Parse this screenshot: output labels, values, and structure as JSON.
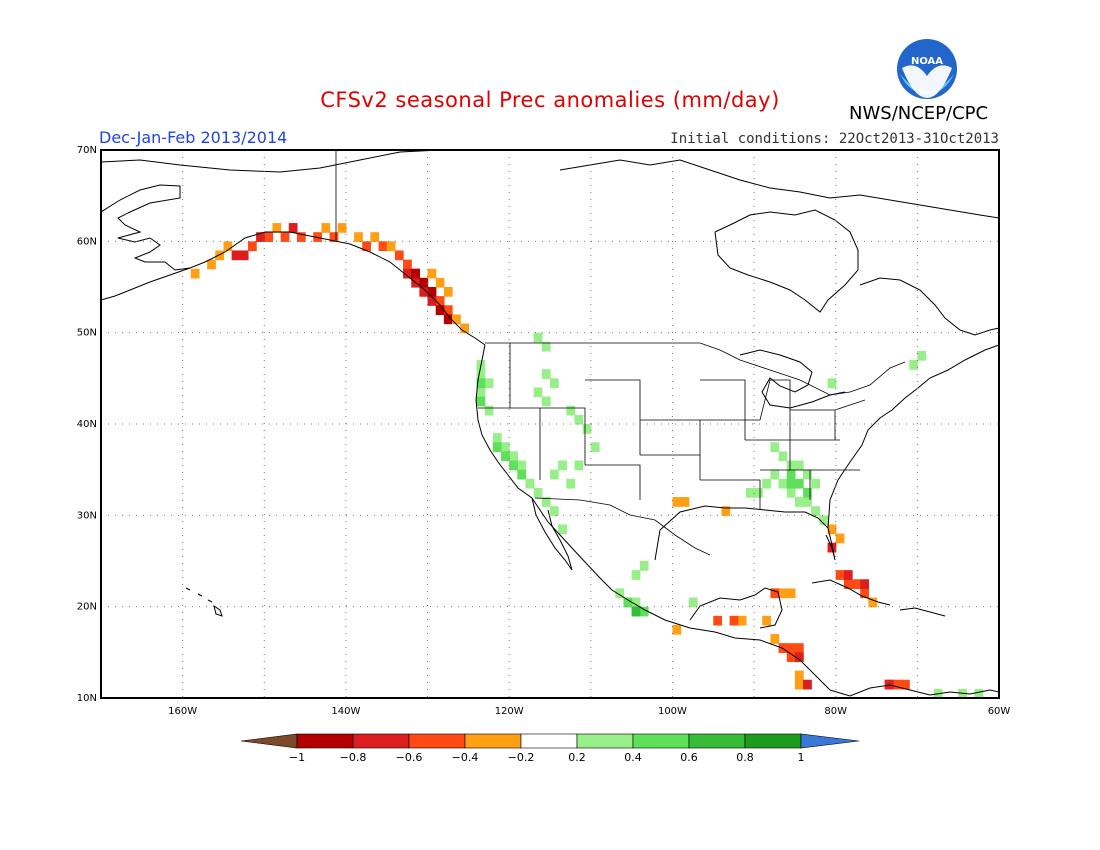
{
  "title": "CFSv2 seasonal Prec anomalies (mm/day)",
  "period": "Dec-Jan-Feb 2013/2014",
  "initial_conditions": "Initial conditions: 22Oct2013-31Oct2013",
  "agency": "NWS/NCEP/CPC",
  "logo": {
    "icon": "noaa-logo-icon",
    "text": "NOAA",
    "colors": {
      "outer": "#2266cc",
      "inner": "#66ccee"
    }
  },
  "map": {
    "lon_range": [
      -170,
      -60
    ],
    "lat_range": [
      10,
      70
    ],
    "lat_labels": [
      "10N",
      "20N",
      "30N",
      "40N",
      "50N",
      "60N",
      "70N"
    ],
    "lon_labels": [
      "160W",
      "140W",
      "120W",
      "100W",
      "80W",
      "60W"
    ],
    "grid_spacing_deg": 10,
    "cell_size_deg": 1
  },
  "colorbar": {
    "labels": [
      "−1",
      "−0.8",
      "−0.6",
      "−0.4",
      "−0.2",
      "0.2",
      "0.4",
      "0.6",
      "0.8",
      "1"
    ],
    "low_extend_color": "#7a4a2a",
    "high_extend_color": "#3a78d8",
    "colors": [
      "#b40000",
      "#dc1e1e",
      "#ff4a14",
      "#ffa014",
      "#ffffff",
      "#98ee88",
      "#5ee05a",
      "#36bc36",
      "#1e9a1e"
    ]
  },
  "anomaly_regions": [
    {
      "name": "gulf-of-alaska-coast",
      "color": "#ff4a14",
      "cells": [
        [
          -152,
          59
        ],
        [
          -150,
          60
        ],
        [
          -148,
          60
        ],
        [
          -146,
          60
        ],
        [
          -144,
          60
        ],
        [
          -142,
          60
        ],
        [
          -138,
          59
        ],
        [
          -136,
          59
        ],
        [
          -134,
          58
        ],
        [
          -133,
          57
        ],
        [
          -132,
          56
        ],
        [
          -131,
          55
        ],
        [
          -130,
          54
        ],
        [
          -129,
          53
        ],
        [
          -128,
          52
        ]
      ]
    },
    {
      "name": "alaska-peninsula-dry",
      "color": "#dc1e1e",
      "cells": [
        [
          -154,
          58
        ],
        [
          -153,
          58
        ],
        [
          -151,
          60
        ],
        [
          -147,
          61
        ],
        [
          -133,
          56
        ],
        [
          -132,
          55
        ],
        [
          -131,
          54
        ],
        [
          -130,
          53
        ]
      ]
    },
    {
      "name": "southeast-alaska-strong",
      "color": "#b40000",
      "cells": [
        [
          -132,
          56
        ],
        [
          -131,
          55
        ],
        [
          -130,
          54
        ],
        [
          -129,
          52
        ],
        [
          -128,
          51
        ]
      ]
    },
    {
      "name": "alaska-coast-weak",
      "color": "#ffa014",
      "cells": [
        [
          -159,
          56
        ],
        [
          -157,
          57
        ],
        [
          -156,
          58
        ],
        [
          -155,
          59
        ],
        [
          -149,
          61
        ],
        [
          -143,
          61
        ],
        [
          -141,
          61
        ],
        [
          -139,
          60
        ],
        [
          -137,
          60
        ],
        [
          -135,
          59
        ],
        [
          -130,
          56
        ],
        [
          -129,
          55
        ],
        [
          -128,
          54
        ],
        [
          -127,
          51
        ],
        [
          -126,
          50
        ]
      ]
    },
    {
      "name": "pacific-northwest-wet",
      "color": "#98ee88",
      "cells": [
        [
          -124,
          46
        ],
        [
          -124,
          45
        ],
        [
          -123,
          44
        ],
        [
          -124,
          43
        ],
        [
          -124,
          42
        ],
        [
          -123,
          41
        ],
        [
          -122,
          38
        ],
        [
          -121,
          37
        ],
        [
          -120,
          36
        ],
        [
          -119,
          35
        ],
        [
          -119,
          34
        ],
        [
          -118,
          33
        ],
        [
          -117,
          32
        ],
        [
          -116,
          31
        ],
        [
          -115,
          30
        ],
        [
          -114,
          28
        ],
        [
          -117,
          49
        ],
        [
          -116,
          48
        ],
        [
          -116,
          45
        ],
        [
          -115,
          44
        ],
        [
          -117,
          43
        ],
        [
          -116,
          42
        ],
        [
          -113,
          41
        ],
        [
          -112,
          40
        ],
        [
          -111,
          39
        ],
        [
          -110,
          37
        ],
        [
          -114,
          35
        ],
        [
          -112,
          35
        ],
        [
          -115,
          34
        ],
        [
          -113,
          33
        ]
      ]
    },
    {
      "name": "california-wet",
      "color": "#5ee05a",
      "cells": [
        [
          -124,
          44
        ],
        [
          -124,
          42
        ],
        [
          -122,
          37
        ],
        [
          -121,
          36
        ],
        [
          -120,
          35
        ],
        [
          -119,
          34
        ]
      ]
    },
    {
      "name": "southeast-us-wet",
      "color": "#98ee88",
      "cells": [
        [
          -88,
          37
        ],
        [
          -87,
          36
        ],
        [
          -86,
          35
        ],
        [
          -85,
          35
        ],
        [
          -88,
          34
        ],
        [
          -87,
          33
        ],
        [
          -86,
          32
        ],
        [
          -85,
          31
        ],
        [
          -84,
          31
        ],
        [
          -83,
          30
        ],
        [
          -82,
          29
        ],
        [
          -81,
          28
        ],
        [
          -84,
          34
        ],
        [
          -83,
          33
        ],
        [
          -89,
          33
        ],
        [
          -90,
          32
        ],
        [
          -91,
          32
        ],
        [
          -81,
          44
        ],
        [
          -70,
          47
        ],
        [
          -71,
          46
        ]
      ]
    },
    {
      "name": "southeast-us-wet-strong",
      "color": "#5ee05a",
      "cells": [
        [
          -86,
          34
        ],
        [
          -85,
          33
        ],
        [
          -86,
          33
        ],
        [
          -84,
          32
        ]
      ]
    },
    {
      "name": "florida-dry",
      "color": "#ffa014",
      "cells": [
        [
          -81,
          28
        ],
        [
          -80,
          27
        ]
      ]
    },
    {
      "name": "florida-dry-strong",
      "color": "#dc1e1e",
      "cells": [
        [
          -81,
          26
        ]
      ]
    },
    {
      "name": "south-plains-dry",
      "color": "#ffa014",
      "cells": [
        [
          -100,
          31
        ],
        [
          -99,
          31
        ],
        [
          -94,
          30
        ]
      ]
    },
    {
      "name": "mexico-wet",
      "color": "#98ee88",
      "cells": [
        [
          -104,
          24
        ],
        [
          -105,
          23
        ],
        [
          -107,
          21
        ],
        [
          -106,
          20
        ],
        [
          -105,
          20
        ],
        [
          -98,
          20
        ]
      ]
    },
    {
      "name": "mexico-wet-strong",
      "color": "#5ee05a",
      "cells": [
        [
          -106,
          20
        ],
        [
          -105,
          19
        ],
        [
          -104,
          19
        ]
      ]
    },
    {
      "name": "mexico-wet-core",
      "color": "#36bc36",
      "cells": [
        [
          -105,
          19
        ]
      ]
    },
    {
      "name": "mexico-south-dry",
      "color": "#ffa014",
      "cells": [
        [
          -100,
          17
        ],
        [
          -92,
          18
        ],
        [
          -89,
          18
        ],
        [
          -87,
          21
        ],
        [
          -86,
          21
        ],
        [
          -88,
          16
        ],
        [
          -87,
          15
        ],
        [
          -85,
          14
        ],
        [
          -85,
          12
        ],
        [
          -85,
          11
        ]
      ]
    },
    {
      "name": "central-america-dry",
      "color": "#ff4a14",
      "cells": [
        [
          -95,
          18
        ],
        [
          -93,
          18
        ],
        [
          -88,
          21
        ],
        [
          -87,
          15
        ],
        [
          -86,
          15
        ],
        [
          -85,
          15
        ],
        [
          -86,
          14
        ]
      ]
    },
    {
      "name": "central-america-dry-strong",
      "color": "#dc1e1e",
      "cells": [
        [
          -85,
          14
        ],
        [
          -84,
          11
        ]
      ]
    },
    {
      "name": "cuba-dry",
      "color": "#ff4a14",
      "cells": [
        [
          -80,
          23
        ],
        [
          -79,
          22
        ],
        [
          -78,
          22
        ],
        [
          -77,
          21
        ]
      ]
    },
    {
      "name": "cuba-dry-strong",
      "color": "#dc1e1e",
      "cells": [
        [
          -79,
          23
        ],
        [
          -77,
          22
        ]
      ]
    },
    {
      "name": "cuba-dry-weak",
      "color": "#ffa014",
      "cells": [
        [
          -76,
          20
        ]
      ]
    },
    {
      "name": "venezuela-dry",
      "color": "#ff4a14",
      "cells": [
        [
          -74,
          11
        ],
        [
          -73,
          11
        ],
        [
          -72,
          11
        ]
      ]
    },
    {
      "name": "venezuela-dry-strong",
      "color": "#dc1e1e",
      "cells": [
        [
          -74,
          11
        ]
      ]
    },
    {
      "name": "venezuela-wet",
      "color": "#98ee88",
      "cells": [
        [
          -68,
          10
        ],
        [
          -65,
          10
        ],
        [
          -63,
          10
        ]
      ]
    }
  ]
}
